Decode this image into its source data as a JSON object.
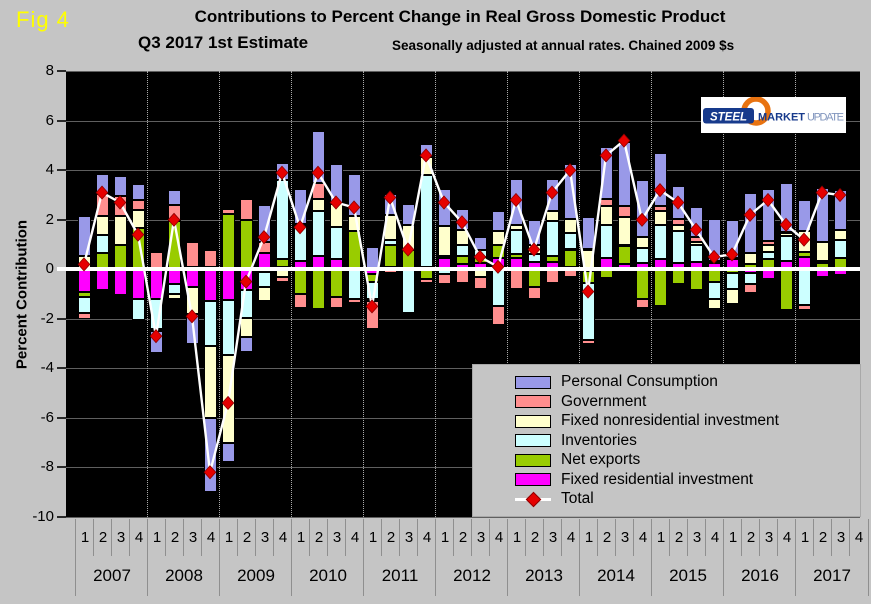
{
  "fig_label": "Fig 4",
  "title": {
    "line1": "Contributions to Percent Change in Real Gross Domestic Product",
    "line2": "Q3 2017 1st  Estimate",
    "note": "Seasonally adjusted at annual rates. Chained 2009 $s"
  },
  "y_axis": {
    "label": "Percent Contribution",
    "ticks": [
      8,
      6,
      4,
      2,
      0,
      -2,
      -4,
      -6,
      -8,
      -10
    ]
  },
  "logo": {
    "steel": "STEEL",
    "market": "MARKET",
    "update": "UPDATE"
  },
  "legend": {
    "items": [
      {
        "label": "Personal Consumption",
        "color": "#9999E8"
      },
      {
        "label": "Government",
        "color": "#FF8E8E"
      },
      {
        "label": "Fixed nonresidential investment",
        "color": "#FFFFCC"
      },
      {
        "label": "Inventories",
        "color": "#CCFFFF"
      },
      {
        "label": "Net exports",
        "color": "#99CC00"
      },
      {
        "label": "Fixed residential investment",
        "color": "#FF00FF"
      }
    ],
    "total_label": "Total"
  },
  "chart_data": {
    "type": "bar",
    "subtype": "stacked-bars-with-total-line",
    "title": "Contributions to Percent Change in Real Gross Domestic Product",
    "subtitle": "Q3 2017 1st Estimate",
    "note": "Seasonally adjusted at annual rates. Chained 2009 $s",
    "ylabel": "Percent Contribution",
    "ylim": [
      -10,
      8
    ],
    "grid": "horizontal solid, dotted vertical year separators, thick white zero line",
    "legend_position": "lower right inside plot",
    "plot_background": "#000000",
    "years": [
      2007,
      2008,
      2009,
      2010,
      2011,
      2012,
      2013,
      2014,
      2015,
      2016,
      2017
    ],
    "quarter_labels": [
      "1",
      "2",
      "3",
      "4"
    ],
    "categories": [
      "2007Q1",
      "2007Q2",
      "2007Q3",
      "2007Q4",
      "2008Q1",
      "2008Q2",
      "2008Q3",
      "2008Q4",
      "2009Q1",
      "2009Q2",
      "2009Q3",
      "2009Q4",
      "2010Q1",
      "2010Q2",
      "2010Q3",
      "2010Q4",
      "2011Q1",
      "2011Q2",
      "2011Q3",
      "2011Q4",
      "2012Q1",
      "2012Q2",
      "2012Q3",
      "2012Q4",
      "2013Q1",
      "2013Q2",
      "2013Q3",
      "2013Q4",
      "2014Q1",
      "2014Q2",
      "2014Q3",
      "2014Q4",
      "2015Q1",
      "2015Q2",
      "2015Q3",
      "2015Q4",
      "2016Q1",
      "2016Q2",
      "2016Q3",
      "2016Q4",
      "2017Q1",
      "2017Q2",
      "2017Q3"
    ],
    "series": [
      {
        "name": "Personal Consumption",
        "color": "#9999E8",
        "values": [
          1.6,
          0.8,
          0.8,
          0.65,
          -0.9,
          0.6,
          -1.2,
          -3.0,
          -0.8,
          -0.6,
          1.5,
          0.7,
          1.4,
          2.1,
          1.6,
          1.7,
          0.9,
          0.85,
          0.85,
          0.5,
          1.5,
          0.85,
          0.5,
          0.8,
          1.85,
          1.0,
          1.3,
          2.2,
          1.3,
          2.1,
          2.6,
          2.3,
          2.15,
          1.3,
          1.2,
          1.7,
          1.55,
          2.45,
          2.1,
          2.0,
          1.25,
          2.2,
          1.6
        ]
      },
      {
        "name": "Government",
        "color": "#FF8E8E",
        "values": [
          -0.25,
          0.9,
          0.8,
          0.4,
          0.7,
          0.65,
          1.0,
          0.7,
          0.2,
          0.85,
          0.45,
          -0.2,
          -0.55,
          0.65,
          -0.45,
          -0.15,
          -1.1,
          -0.15,
          -0.05,
          -0.15,
          -0.4,
          -0.55,
          -0.5,
          -0.75,
          -0.8,
          -0.5,
          -0.55,
          -0.3,
          -0.15,
          0.3,
          0.45,
          -0.35,
          0.2,
          0.25,
          0.2,
          0.1,
          0.05,
          -0.35,
          0.15,
          0.05,
          -0.2,
          0.0,
          0.0
        ]
      },
      {
        "name": "Fixed nonresidential investment",
        "color": "#FFFFCC",
        "values": [
          0.55,
          0.75,
          1.15,
          0.75,
          -0.1,
          -0.2,
          -1.1,
          -2.9,
          -3.55,
          -0.8,
          -0.6,
          -0.3,
          0.1,
          0.5,
          0.95,
          0.6,
          -0.1,
          1.0,
          1.0,
          0.75,
          1.2,
          0.6,
          -0.3,
          0.55,
          0.2,
          0.4,
          0.4,
          0.6,
          0.8,
          0.75,
          1.1,
          0.45,
          0.55,
          0.25,
          0.1,
          -0.4,
          -0.6,
          0.45,
          0.3,
          0.1,
          0.85,
          0.75,
          0.4
        ]
      },
      {
        "name": "Inventories",
        "color": "#CCFFFF",
        "values": [
          -0.65,
          0.75,
          0.0,
          -0.85,
          -1.2,
          -0.4,
          0.1,
          -1.8,
          -2.2,
          -1.1,
          -0.6,
          3.2,
          1.4,
          1.8,
          1.3,
          -1.2,
          -0.7,
          0.2,
          -1.75,
          3.7,
          -0.2,
          0.45,
          0.3,
          -1.5,
          1.0,
          0.3,
          1.4,
          0.65,
          -2.3,
          1.35,
          0.05,
          0.6,
          1.4,
          1.3,
          0.7,
          -0.7,
          -0.65,
          -0.45,
          0.3,
          1.0,
          -1.45,
          0.1,
          0.75
        ]
      },
      {
        "name": "Net exports",
        "color": "#99CC00",
        "values": [
          -0.2,
          0.65,
          1.0,
          1.65,
          0.0,
          1.95,
          0.0,
          0.1,
          2.25,
          2.0,
          -0.1,
          0.3,
          -1.0,
          -1.6,
          -1.1,
          1.5,
          -0.3,
          0.9,
          0.75,
          -0.4,
          0.1,
          0.35,
          0.25,
          0.55,
          0.15,
          -0.7,
          0.25,
          0.7,
          -0.5,
          -0.35,
          0.75,
          -1.2,
          -1.5,
          -0.6,
          -0.85,
          -0.5,
          -0.15,
          0.2,
          0.4,
          -1.65,
          0.2,
          0.25,
          0.45
        ]
      },
      {
        "name": "Fixed residential investment",
        "color": "#FF00FF",
        "values": [
          -0.9,
          -0.85,
          -1.05,
          -1.2,
          -1.2,
          -0.6,
          -0.7,
          -1.3,
          -1.25,
          -0.85,
          0.65,
          0.1,
          0.35,
          0.55,
          0.4,
          0.05,
          -0.2,
          0.1,
          0.05,
          0.1,
          0.45,
          0.2,
          0.25,
          0.45,
          0.45,
          0.3,
          0.3,
          0.1,
          -0.05,
          0.45,
          0.2,
          0.25,
          0.4,
          0.25,
          0.3,
          0.25,
          0.4,
          -0.15,
          -0.4,
          0.35,
          0.5,
          -0.3,
          -0.25
        ]
      }
    ],
    "total": {
      "name": "Total",
      "marker": "red diamond on white line",
      "line_color": "#FFFFFF",
      "marker_color": "#E60000",
      "values": [
        0.2,
        3.1,
        2.7,
        1.4,
        -2.7,
        2.0,
        -1.9,
        -8.2,
        -5.4,
        -0.5,
        1.3,
        3.9,
        1.7,
        3.9,
        2.7,
        2.5,
        -1.5,
        2.9,
        0.8,
        4.6,
        2.7,
        1.9,
        0.5,
        0.1,
        2.8,
        0.8,
        3.1,
        4.0,
        -0.9,
        4.6,
        5.2,
        2.0,
        3.2,
        2.7,
        1.6,
        0.5,
        0.6,
        2.2,
        2.8,
        1.8,
        1.2,
        3.1,
        3.0
      ]
    }
  }
}
